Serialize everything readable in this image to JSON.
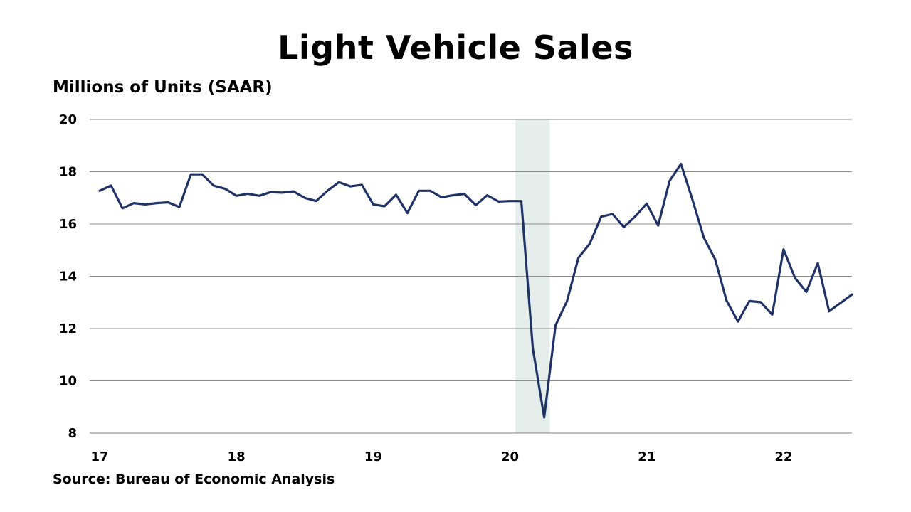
{
  "chart_data": {
    "type": "line",
    "title": "Light Vehicle Sales",
    "ylabel": "Millions of Units (SAAR)",
    "xlabel": "",
    "source": "Source: Bureau of Economic Analysis",
    "ylim": [
      8,
      20
    ],
    "yticks": [
      8,
      10,
      12,
      14,
      16,
      18,
      20
    ],
    "xlim": [
      2017.0,
      2022.5
    ],
    "xticks": [
      {
        "value": 2017,
        "label": "17"
      },
      {
        "value": 2018,
        "label": "18"
      },
      {
        "value": 2019,
        "label": "19"
      },
      {
        "value": 2020,
        "label": "20"
      },
      {
        "value": 2021,
        "label": "21"
      },
      {
        "value": 2022,
        "label": "22"
      }
    ],
    "grid": true,
    "recession_shading": {
      "from": 2020.04,
      "to": 2020.29,
      "color": "#e6eeec"
    },
    "series": [
      {
        "color": "#1f3366",
        "x": [
          2017.0,
          2017.083,
          2017.167,
          2017.25,
          2017.333,
          2017.417,
          2017.5,
          2017.583,
          2017.667,
          2017.75,
          2017.833,
          2017.917,
          2018.0,
          2018.083,
          2018.167,
          2018.25,
          2018.333,
          2018.417,
          2018.5,
          2018.583,
          2018.667,
          2018.75,
          2018.833,
          2018.917,
          2019.0,
          2019.083,
          2019.167,
          2019.25,
          2019.333,
          2019.417,
          2019.5,
          2019.583,
          2019.667,
          2019.75,
          2019.833,
          2019.917,
          2020.0,
          2020.083,
          2020.167,
          2020.25,
          2020.333,
          2020.417,
          2020.5,
          2020.583,
          2020.667,
          2020.75,
          2020.833,
          2020.917,
          2021.0,
          2021.083,
          2021.167,
          2021.25,
          2021.333,
          2021.417,
          2021.5,
          2021.583,
          2021.667,
          2021.75,
          2021.833,
          2021.917,
          2022.0,
          2022.083,
          2022.167,
          2022.25,
          2022.333,
          2022.417,
          2022.5
        ],
        "values": [
          17.27,
          17.47,
          16.6,
          16.8,
          16.75,
          16.8,
          16.83,
          16.65,
          17.9,
          17.9,
          17.47,
          17.35,
          17.08,
          17.16,
          17.08,
          17.22,
          17.2,
          17.25,
          17.0,
          16.88,
          17.28,
          17.6,
          17.44,
          17.5,
          16.75,
          16.68,
          17.12,
          16.42,
          17.27,
          17.27,
          17.02,
          17.1,
          17.15,
          16.72,
          17.1,
          16.86,
          16.88,
          16.88,
          11.25,
          8.6,
          12.12,
          13.05,
          14.7,
          15.25,
          16.28,
          16.38,
          15.88,
          16.3,
          16.78,
          15.94,
          17.65,
          18.3,
          16.95,
          15.48,
          14.65,
          13.07,
          12.27,
          13.05,
          13.01,
          12.53,
          15.03,
          13.94,
          13.4,
          14.5,
          12.66,
          12.98,
          13.3
        ]
      }
    ]
  }
}
